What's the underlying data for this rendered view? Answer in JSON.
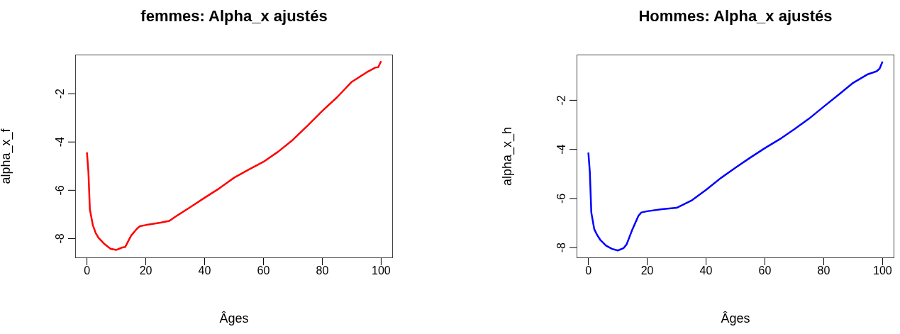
{
  "chart_data": [
    {
      "type": "line",
      "title": "femmes: Alpha_x ajustés",
      "xlabel": "Âges",
      "ylabel": "alpha_x_f",
      "x": [
        0,
        0.5,
        1,
        2,
        3,
        4,
        6,
        8,
        10,
        12,
        13,
        15,
        17,
        18,
        20,
        25,
        28,
        30,
        35,
        40,
        45,
        50,
        55,
        60,
        65,
        70,
        75,
        80,
        85,
        90,
        95,
        98,
        99,
        100
      ],
      "series": [
        {
          "color": "#ff0000",
          "values": [
            -4.43,
            -5.24,
            -6.8,
            -7.44,
            -7.78,
            -7.98,
            -8.23,
            -8.42,
            -8.47,
            -8.37,
            -8.35,
            -7.88,
            -7.59,
            -7.49,
            -7.44,
            -7.34,
            -7.27,
            -7.1,
            -6.71,
            -6.31,
            -5.92,
            -5.48,
            -5.14,
            -4.82,
            -4.4,
            -3.91,
            -3.32,
            -2.71,
            -2.15,
            -1.51,
            -1.12,
            -0.92,
            -0.9,
            -0.65
          ]
        }
      ],
      "xlim": [
        -4,
        104
      ],
      "xticks": [
        0,
        20,
        40,
        60,
        80,
        100
      ],
      "ylim": [
        -8.81,
        -0.38
      ],
      "yticks": [
        -8,
        -6,
        -4,
        -2
      ]
    },
    {
      "type": "line",
      "title": "Hommes: Alpha_x ajustés",
      "xlabel": "Âges",
      "ylabel": "alpha_x_h",
      "x": [
        0,
        0.5,
        1,
        2,
        3,
        4,
        6,
        8,
        10,
        12,
        13,
        15,
        17,
        18,
        20,
        25,
        30,
        35,
        40,
        45,
        50,
        55,
        60,
        65,
        70,
        75,
        80,
        85,
        90,
        95,
        98,
        99,
        100
      ],
      "series": [
        {
          "color": "#0000ff",
          "values": [
            -4.13,
            -4.92,
            -6.57,
            -7.25,
            -7.49,
            -7.68,
            -7.92,
            -8.05,
            -8.12,
            -8.02,
            -7.87,
            -7.25,
            -6.71,
            -6.57,
            -6.52,
            -6.44,
            -6.38,
            -6.09,
            -5.65,
            -5.17,
            -4.75,
            -4.34,
            -3.95,
            -3.59,
            -3.18,
            -2.75,
            -2.26,
            -1.78,
            -1.29,
            -0.94,
            -0.82,
            -0.71,
            -0.42
          ]
        }
      ],
      "xlim": [
        -4,
        104
      ],
      "xticks": [
        0,
        20,
        40,
        60,
        80,
        100
      ],
      "ylim": [
        -8.43,
        -0.14
      ],
      "yticks": [
        -8,
        -6,
        -4,
        -2
      ]
    }
  ]
}
